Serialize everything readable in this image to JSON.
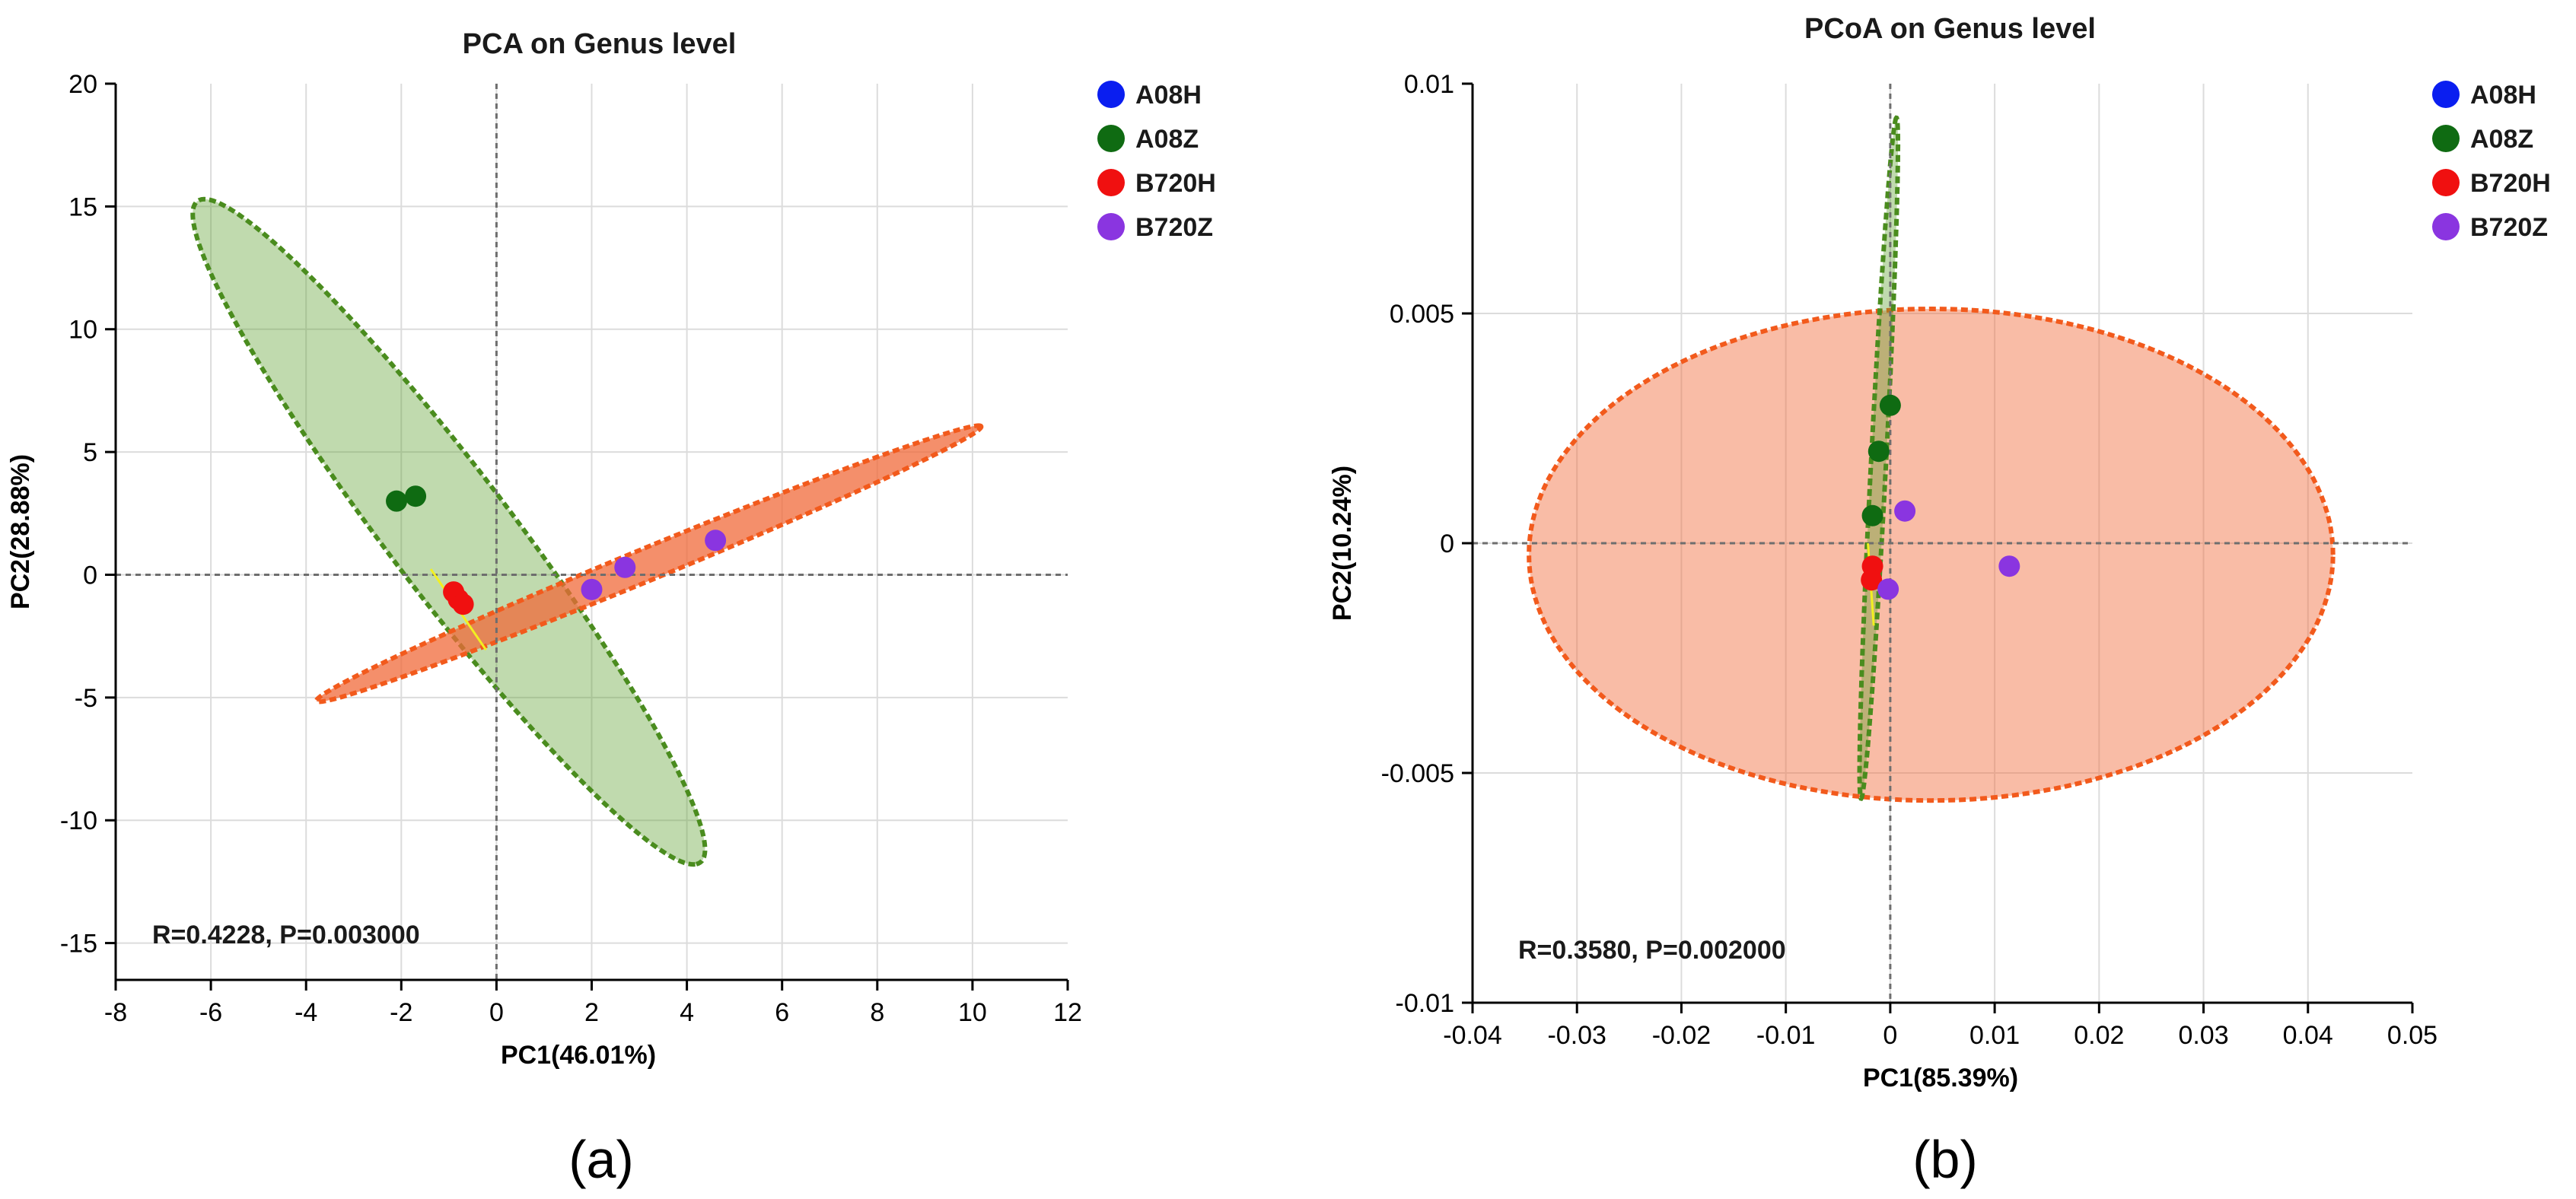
{
  "chart_data": [
    {
      "type": "scatter",
      "panel_label": "(a)",
      "title": "PCA on Genus level",
      "xlabel": "PC1(46.01%)",
      "ylabel": "PC2(28.88%)",
      "xlim": [
        -8,
        12
      ],
      "ylim": [
        -16.5,
        20
      ],
      "xticks": [
        -8,
        -6,
        -4,
        -2,
        0,
        2,
        4,
        6,
        8,
        10,
        12
      ],
      "yticks": [
        -15,
        -10,
        -5,
        0,
        5,
        10,
        15,
        20
      ],
      "grid": true,
      "legend_position": "outside-right",
      "annotation": "R=0.4228, P=0.003000",
      "series": [
        {
          "name": "A08H",
          "color": "#0a1ef0",
          "points": []
        },
        {
          "name": "A08Z",
          "color": "#0f6b12",
          "points": [
            [
              -2.1,
              3.0
            ],
            [
              -1.7,
              3.2
            ]
          ]
        },
        {
          "name": "B720H",
          "color": "#f01010",
          "points": [
            [
              -0.9,
              -0.7
            ],
            [
              -0.8,
              -1.0
            ],
            [
              -0.7,
              -1.2
            ]
          ]
        },
        {
          "name": "B720Z",
          "color": "#8a35e0",
          "points": [
            [
              2.0,
              -0.6
            ],
            [
              2.7,
              0.3
            ],
            [
              4.6,
              1.4
            ]
          ]
        }
      ],
      "ellipses": [
        {
          "group": "A08Z",
          "fill": "#5a9e2a",
          "fill_opacity": 0.38,
          "stroke": "#4a8c1e",
          "cx": -1.0,
          "cy": 1.75,
          "rx": 14.5,
          "ry": 1.5,
          "angle_deg": -69
        },
        {
          "group": "B720Z",
          "fill": "#f06a3a",
          "fill_opacity": 0.75,
          "stroke": "#f25a1c",
          "cx": 3.2,
          "cy": 0.45,
          "rx": 8.95,
          "ry": 0.55,
          "angle_deg": 38.8
        }
      ]
    },
    {
      "type": "scatter",
      "panel_label": "(b)",
      "title": "PCoA on Genus level",
      "xlabel": "PC1(85.39%)",
      "ylabel": "PC2(10.24%)",
      "xlim": [
        -0.04,
        0.05
      ],
      "ylim": [
        -0.01,
        0.01
      ],
      "xticks": [
        -0.04,
        -0.03,
        -0.02,
        -0.01,
        0,
        0.01,
        0.02,
        0.03,
        0.04,
        0.05
      ],
      "yticks": [
        -0.01,
        -0.005,
        0,
        0.005,
        0.01
      ],
      "grid": true,
      "legend_position": "outside-right",
      "annotation": "R=0.3580, P=0.002000",
      "series": [
        {
          "name": "A08H",
          "color": "#0a1ef0",
          "points": []
        },
        {
          "name": "A08Z",
          "color": "#0f6b12",
          "points": [
            [
              0.0,
              0.003
            ],
            [
              -0.0011,
              0.002
            ],
            [
              -0.0017,
              0.0006
            ]
          ]
        },
        {
          "name": "B720H",
          "color": "#f01010",
          "points": [
            [
              -0.0017,
              -0.0005
            ],
            [
              -0.0018,
              -0.0008
            ]
          ]
        },
        {
          "name": "B720Z",
          "color": "#8a35e0",
          "points": [
            [
              0.0014,
              0.0007
            ],
            [
              -0.0002,
              -0.001
            ],
            [
              0.0114,
              -0.0005
            ]
          ]
        }
      ],
      "ellipses": [
        {
          "group": "B720Z",
          "fill": "#f26a3a",
          "fill_opacity": 0.45,
          "stroke": "#f25a1c",
          "cx": 0.0039,
          "cy": -0.00025,
          "rx": 0.0385,
          "ry": 0.00535,
          "angle_deg": 0
        },
        {
          "group": "A08Z",
          "fill": "#5a9e2a",
          "fill_opacity": 0.38,
          "stroke": "#4a8c1e",
          "cx": -0.0011,
          "cy": 0.00185,
          "rx": 0.0076,
          "ry": 0.0007,
          "angle_deg": 77
        }
      ]
    }
  ]
}
